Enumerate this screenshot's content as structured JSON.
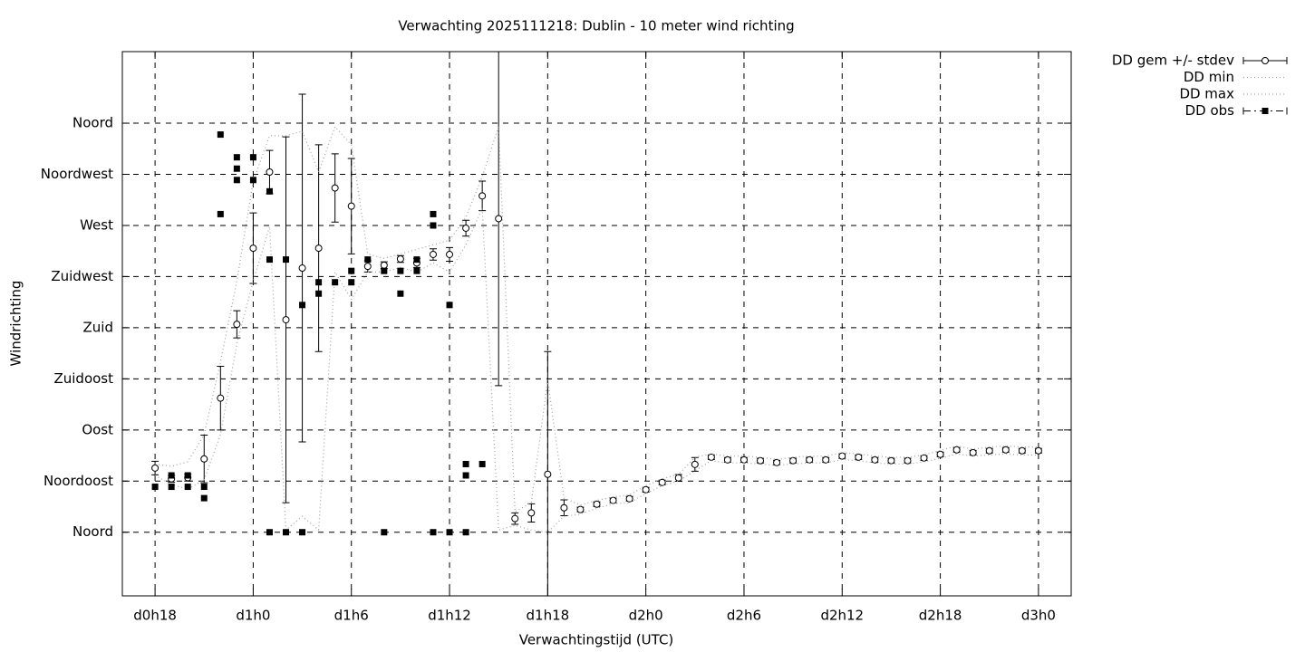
{
  "chart_data": {
    "type": "line",
    "title": "Verwachting 2025111218: Dublin - 10 meter wind richting",
    "x_label": "Verwachtingstijd (UTC)",
    "y_label": "Windrichting",
    "x": [
      18,
      19,
      20,
      21,
      22,
      23,
      24,
      25,
      26,
      27,
      28,
      29,
      30,
      31,
      32,
      33,
      34,
      35,
      36,
      37,
      38,
      39,
      40,
      41,
      42,
      43,
      44,
      45,
      46,
      47,
      48,
      49,
      50,
      51,
      52,
      53,
      54,
      55,
      56,
      57,
      58,
      59,
      60,
      61,
      62,
      63,
      64,
      65,
      66,
      67,
      68,
      69,
      70,
      71,
      72
    ],
    "xlim": [
      16,
      74
    ],
    "xticks": [
      {
        "value": 18,
        "label": "d0h18"
      },
      {
        "value": 24,
        "label": "d1h0"
      },
      {
        "value": 30,
        "label": "d1h6"
      },
      {
        "value": 36,
        "label": "d1h12"
      },
      {
        "value": 42,
        "label": "d1h18"
      },
      {
        "value": 48,
        "label": "d2h0"
      },
      {
        "value": 54,
        "label": "d2h6"
      },
      {
        "value": 60,
        "label": "d2h12"
      },
      {
        "value": 66,
        "label": "d2h18"
      },
      {
        "value": 72,
        "label": "d3h0"
      }
    ],
    "ylim": [
      -56,
      423
    ],
    "yticks": [
      {
        "value": 0,
        "label": "Noord"
      },
      {
        "value": 45,
        "label": "Noordoost"
      },
      {
        "value": 90,
        "label": "Oost"
      },
      {
        "value": 135,
        "label": "Zuidoost"
      },
      {
        "value": 180,
        "label": "Zuid"
      },
      {
        "value": 225,
        "label": "Zuidwest"
      },
      {
        "value": 270,
        "label": "West"
      },
      {
        "value": 315,
        "label": "Noordwest"
      },
      {
        "value": 360,
        "label": "Noord"
      }
    ],
    "grid": true,
    "legend": "outside-top-right",
    "series": [
      {
        "name": "DD gem +/- stdev",
        "color": "#000000",
        "marker": "circle",
        "line": "errorbar",
        "values": [
          56.5,
          47,
          48,
          64.5,
          118,
          183,
          250,
          317,
          187,
          232.5,
          250,
          303,
          287,
          234,
          235,
          240.5,
          237,
          244.5,
          244.5,
          267.6,
          296,
          276,
          12,
          17,
          51,
          21.5,
          20,
          24.7,
          28,
          29.5,
          37.4,
          43.8,
          47.8,
          59.7,
          66,
          63.7,
          63.7,
          63,
          61.3,
          63,
          63.7,
          63.7,
          67,
          66,
          63.7,
          63,
          63,
          65.3,
          68.5,
          72.5,
          70,
          71.7,
          72.5,
          71.7,
          71.7
        ],
        "errors": [
          6,
          3,
          3,
          21,
          28,
          12,
          31,
          19,
          161,
          153,
          91,
          30,
          42,
          5,
          3,
          3,
          4,
          5,
          6,
          7,
          13,
          147,
          5,
          8,
          108,
          7,
          2,
          2,
          2,
          2,
          2,
          2,
          3,
          6,
          2,
          2,
          2,
          2,
          2,
          2,
          2,
          2,
          2,
          2,
          2,
          2,
          2,
          2,
          2,
          2,
          2,
          2,
          2,
          2,
          2
        ]
      },
      {
        "name": "DD min",
        "color": "#a0a0a0",
        "marker": "none",
        "line": "dotted",
        "values": [
          50,
          42,
          38,
          46,
          86,
          166,
          221,
          269,
          2,
          14,
          2,
          229,
          205,
          229,
          229,
          233,
          229,
          237,
          229,
          253,
          285,
          2,
          6,
          2,
          0,
          14,
          16,
          21,
          25,
          26,
          34,
          41,
          45,
          54,
          63,
          61,
          61,
          60,
          59,
          60,
          61,
          61,
          64,
          63,
          61,
          60,
          60,
          62,
          65,
          69,
          67,
          68,
          69,
          68,
          68
        ]
      },
      {
        "name": "DD max",
        "color": "#a0a0a0",
        "marker": "none",
        "line": "dotted",
        "values": [
          60,
          58,
          62,
          86,
          150,
          221,
          309,
          349,
          349,
          353,
          317,
          357,
          341,
          245,
          241,
          245,
          249,
          253,
          257,
          277,
          313,
          357,
          18,
          26,
          134,
          30,
          24,
          28,
          31,
          33,
          41,
          47,
          51,
          66,
          69,
          67,
          67,
          66,
          64,
          66,
          67,
          67,
          70,
          69,
          67,
          66,
          66,
          68,
          72,
          76,
          73,
          75,
          76,
          75,
          75
        ]
      },
      {
        "name": "DD obs",
        "color": "#000000",
        "marker": "square",
        "line": "dashdot",
        "x": [
          18,
          19,
          19,
          20,
          20,
          21,
          21,
          22,
          22,
          23,
          23,
          23,
          24,
          24,
          25,
          25,
          25,
          26,
          26,
          27,
          27,
          28,
          28,
          29,
          30,
          30,
          31,
          32,
          32,
          33,
          33,
          34,
          34,
          35,
          35,
          35,
          36,
          36,
          37,
          37,
          37,
          38
        ],
        "values": [
          40,
          50,
          40,
          50,
          40,
          40,
          30,
          350,
          280,
          330,
          320,
          310,
          330,
          310,
          300,
          0,
          240,
          240,
          0,
          200,
          0,
          220,
          210,
          220,
          230,
          220,
          240,
          230,
          0,
          230,
          210,
          240,
          230,
          280,
          270,
          0,
          200,
          0,
          60,
          50,
          0,
          60
        ]
      }
    ]
  }
}
